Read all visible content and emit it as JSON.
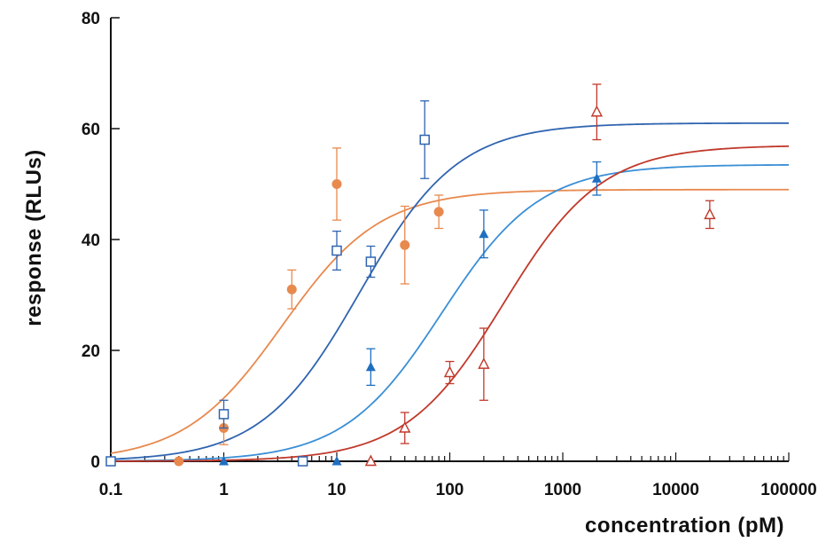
{
  "chart_data": {
    "type": "scatter",
    "title": "",
    "xlabel": "concentration (pM)",
    "ylabel": "response (RLUs)",
    "x_scale": "log",
    "xlim": [
      0.1,
      100000
    ],
    "ylim": [
      0,
      80
    ],
    "x_ticks": [
      "0.1",
      "1",
      "10",
      "100",
      "1000",
      "10000",
      "100000"
    ],
    "y_ticks": [
      "0",
      "20",
      "40",
      "60",
      "80"
    ],
    "grid": false,
    "legend": "none",
    "series": [
      {
        "marker": "filled-circle",
        "color": "#e8894e",
        "points": [
          {
            "x": 0.4,
            "y": 0,
            "err": 0
          },
          {
            "x": 1,
            "y": 6,
            "err": 3
          },
          {
            "x": 4,
            "y": 31,
            "err": 3.5
          },
          {
            "x": 10,
            "y": 50,
            "err": 6.5
          },
          {
            "x": 40,
            "y": 39,
            "err": 7
          },
          {
            "x": 80,
            "y": 45,
            "err": 3
          }
        ],
        "fit": {
          "top": 49,
          "ec50": 3.3,
          "hill": 1
        }
      },
      {
        "marker": "open-square",
        "color": "#2f64b0",
        "points": [
          {
            "x": 0.1,
            "y": 0,
            "err": 0
          },
          {
            "x": 1,
            "y": 8.5,
            "err": 2.5
          },
          {
            "x": 5,
            "y": 0,
            "err": 0
          },
          {
            "x": 10,
            "y": 38,
            "err": 3.5
          },
          {
            "x": 20,
            "y": 36,
            "err": 2.8
          },
          {
            "x": 60,
            "y": 58,
            "err": 7
          }
        ],
        "fit": {
          "top": 61,
          "ec50": 16,
          "hill": 1
        }
      },
      {
        "marker": "filled-triangle",
        "color": "#1f6fc0",
        "points": [
          {
            "x": 1,
            "y": 0,
            "err": 0
          },
          {
            "x": 10,
            "y": 0,
            "err": 0
          },
          {
            "x": 20,
            "y": 17,
            "err": 3.3
          },
          {
            "x": 200,
            "y": 41,
            "err": 4.3
          },
          {
            "x": 2000,
            "y": 51,
            "err": 3
          }
        ],
        "fit": {
          "top": 53.5,
          "ec50": 85,
          "hill": 1
        }
      },
      {
        "marker": "open-triangle",
        "color": "#c0392b",
        "points": [
          {
            "x": 20,
            "y": 0,
            "err": 0
          },
          {
            "x": 40,
            "y": 6,
            "err": 2.8
          },
          {
            "x": 100,
            "y": 16,
            "err": 2
          },
          {
            "x": 200,
            "y": 17.5,
            "err": 6.5
          },
          {
            "x": 2000,
            "y": 63,
            "err": 5
          },
          {
            "x": 20000,
            "y": 44.5,
            "err": 2.5
          }
        ],
        "fit": {
          "top": 57,
          "ec50": 300,
          "hill": 1
        }
      }
    ]
  },
  "colors": {
    "axis": "#111111",
    "orange": "#e8894e",
    "dark_blue": "#2f64b0",
    "light_blue": "#3a8fd6",
    "red": "#c0392b"
  }
}
